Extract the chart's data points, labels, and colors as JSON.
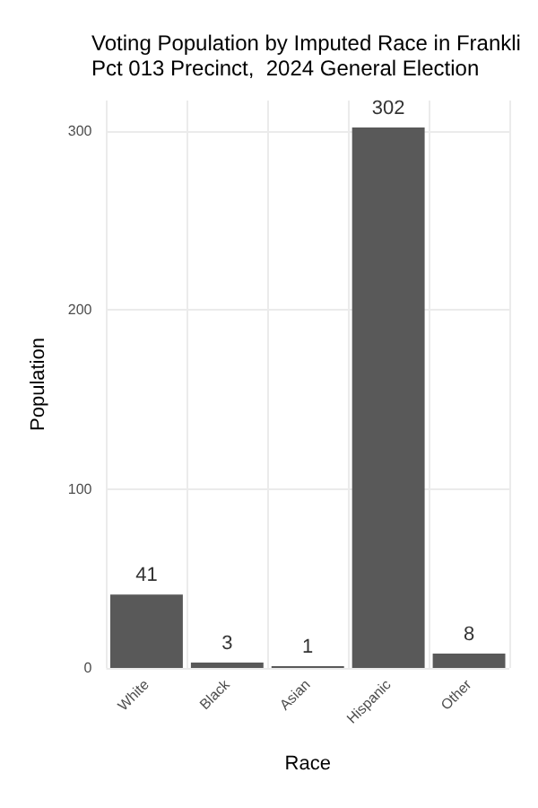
{
  "chart_data": {
    "type": "bar",
    "title": "Voting Population by Imputed Race in Frankli\nPct 013 Precinct,  2024 General Election",
    "xlabel": "Race",
    "ylabel": "Population",
    "categories": [
      "White",
      "Black",
      "Asian",
      "Hispanic",
      "Other"
    ],
    "values": [
      41,
      3,
      1,
      302,
      8
    ],
    "color": "#595959",
    "ylim": [
      0,
      317
    ],
    "yticks": [
      0,
      100,
      200,
      300
    ],
    "grid": true,
    "data_labels": true
  }
}
